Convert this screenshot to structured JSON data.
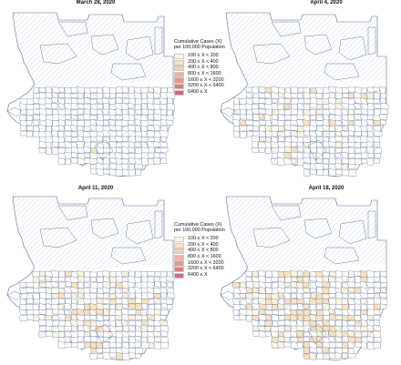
{
  "panels": [
    {
      "title": "March 28, 2020"
    },
    {
      "title": "April 4, 2020"
    },
    {
      "title": "April 11, 2020"
    },
    {
      "title": "April 18, 2020"
    }
  ],
  "legend": {
    "title_line1": "Cumulative Cases (X)",
    "title_line2": "per 100,000 Population",
    "items": [
      {
        "label": "100 ≤ X < 200",
        "color": "#fdf4e0"
      },
      {
        "label": "200 ≤ X < 400",
        "color": "#fbe3c0"
      },
      {
        "label": "400 ≤ X < 800",
        "color": "#f8cfad"
      },
      {
        "label": "800 ≤ X < 1600",
        "color": "#f2b299"
      },
      {
        "label": "1600 ≤ X < 3200",
        "color": "#e9968a"
      },
      {
        "label": "3200 ≤ X < 6400",
        "color": "#de7c7c"
      },
      {
        "label": "6400 ≤ X",
        "color": "#d46a73"
      }
    ]
  },
  "colors": {
    "boundary": "#5b6f8f",
    "hatch": "#b9c9dc",
    "fill_low": "#fdf4e0",
    "fill_mid": "#fbe3c0"
  }
}
